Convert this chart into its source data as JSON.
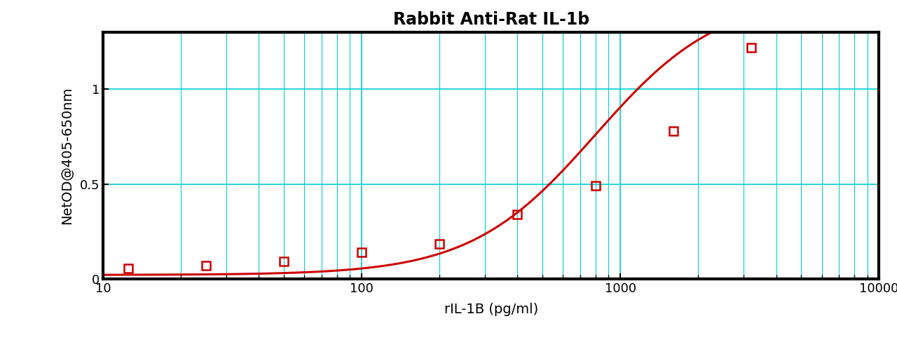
{
  "title": "Rabbit Anti-Rat IL-1b",
  "xlabel": "rIL-1B (pg/ml)",
  "ylabel": "NetOD@405-650nm",
  "x_data": [
    12.5,
    25,
    50,
    100,
    200,
    400,
    800,
    1600,
    3200
  ],
  "y_data": [
    0.053,
    0.068,
    0.09,
    0.138,
    0.183,
    0.34,
    0.49,
    0.78,
    1.22
  ],
  "xlim": [
    10,
    10000
  ],
  "ylim": [
    0,
    1.3
  ],
  "yticks": [
    0,
    0.5,
    1.0
  ],
  "ytick_labels": [
    "0",
    "0.5",
    "1"
  ],
  "xtick_labels": [
    "10",
    "100",
    "1000",
    "10000"
  ],
  "curve_color": "#cc0000",
  "marker_color": "#cc0000",
  "grid_color": "#00d0d0",
  "background_color": "#ffffff",
  "title_fontsize": 17,
  "label_fontsize": 14,
  "tick_fontsize": 13,
  "title_fontweight": "bold",
  "spine_linewidth": 3.0
}
